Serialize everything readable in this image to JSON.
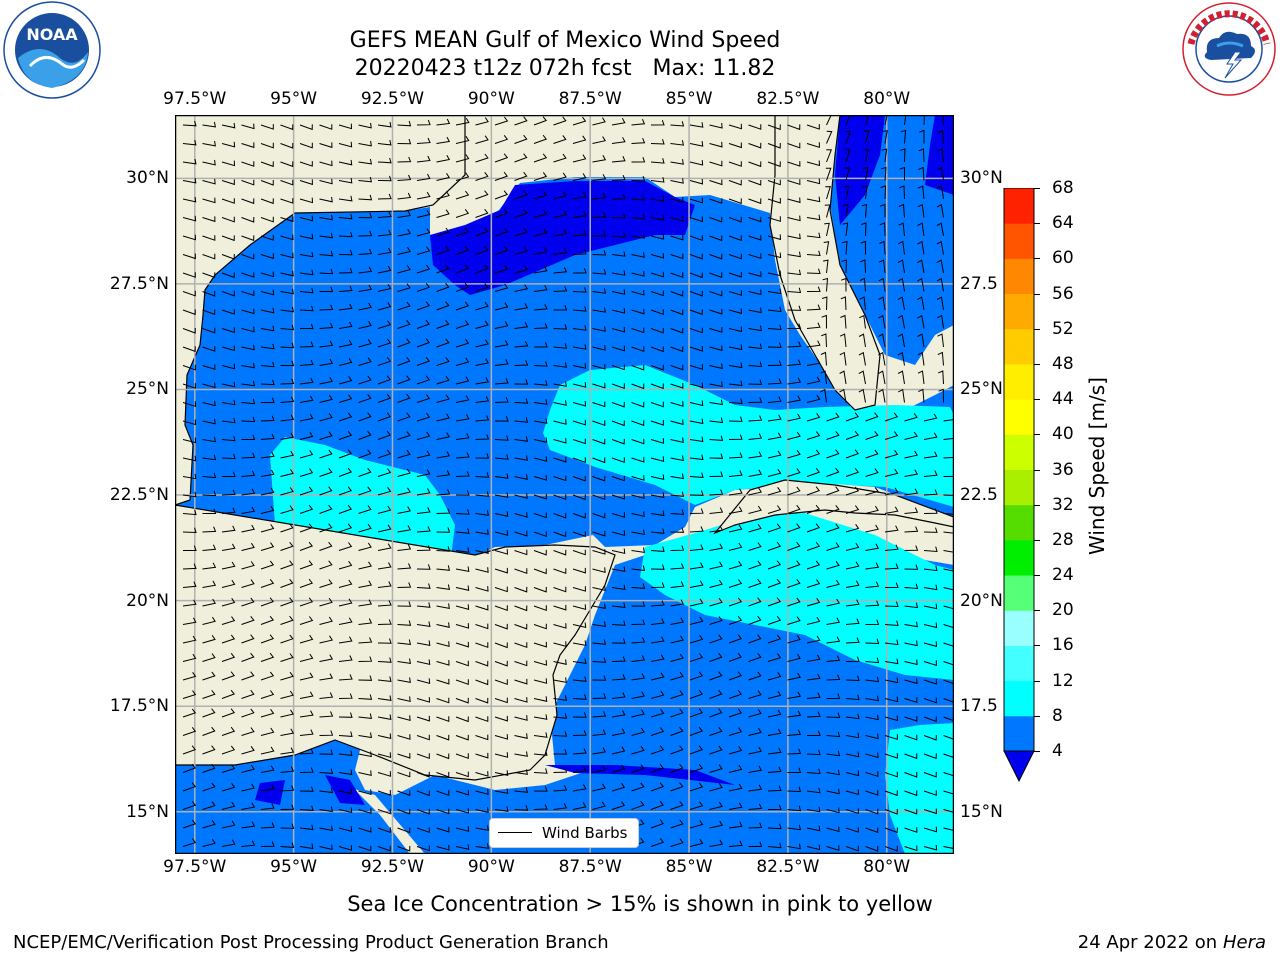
{
  "header": {
    "title_line1": "GEFS MEAN Gulf of Mexico Wind Speed",
    "title_line2": "20220423 t12z 072h fcst   Max: 11.82"
  },
  "logos": {
    "left": {
      "text": "NOAA",
      "ring_text": "NATIONAL OCEANIC AND ATMOSPHERIC ADMINISTRATION · U.S. DEPARTMENT OF COMMERCE",
      "color": "#1a4fa0"
    },
    "right": {
      "ring_text": "NATIONAL WEATHER SERVICE",
      "color": "#d22030"
    }
  },
  "map": {
    "lon_ticks": [
      "97.5°W",
      "95°W",
      "92.5°W",
      "90°W",
      "87.5°W",
      "85°W",
      "82.5°W",
      "80°W"
    ],
    "lat_ticks_left": [
      "30°N",
      "27.5°N",
      "25°N",
      "22.5°N",
      "20°N",
      "17.5°N",
      "15°N"
    ],
    "lat_ticks_right": [
      "30°N",
      "27.5",
      "25°N",
      "22.5",
      "20°N",
      "17.5",
      "15°N"
    ],
    "extent": {
      "lon_min": -98,
      "lon_max": -78.3,
      "lat_min": 14,
      "lat_max": 31.5
    },
    "land_color": "#efefdc",
    "ocean_colors": {
      "4-8": "#0077ff",
      "8-12": "#00ffff",
      "under-4": "#0000ee"
    },
    "legend": {
      "label": "Wind Barbs"
    }
  },
  "colorbar": {
    "label": "Wind Speed [m/s]",
    "ticks": [
      "4",
      "8",
      "12",
      "16",
      "20",
      "24",
      "28",
      "32",
      "36",
      "40",
      "44",
      "48",
      "52",
      "56",
      "60",
      "64",
      "68"
    ],
    "colors": [
      "#0077ff",
      "#00ffff",
      "#44ffff",
      "#99ffff",
      "#55ff77",
      "#00ee00",
      "#55dd00",
      "#aaee00",
      "#ccff00",
      "#ffff00",
      "#ffee00",
      "#ffcc00",
      "#ffaa00",
      "#ff8800",
      "#ff5500",
      "#ff2200",
      "#ff0000"
    ],
    "under_color": "#0000ee"
  },
  "footer": {
    "caption": "Sea Ice Concentration > 15% is shown in pink to yellow",
    "left_text": "NCEP/EMC/Verification Post Processing Product Generation Branch",
    "right_text_prefix": "24 Apr 2022 on",
    "right_text_machine": "Hera"
  }
}
